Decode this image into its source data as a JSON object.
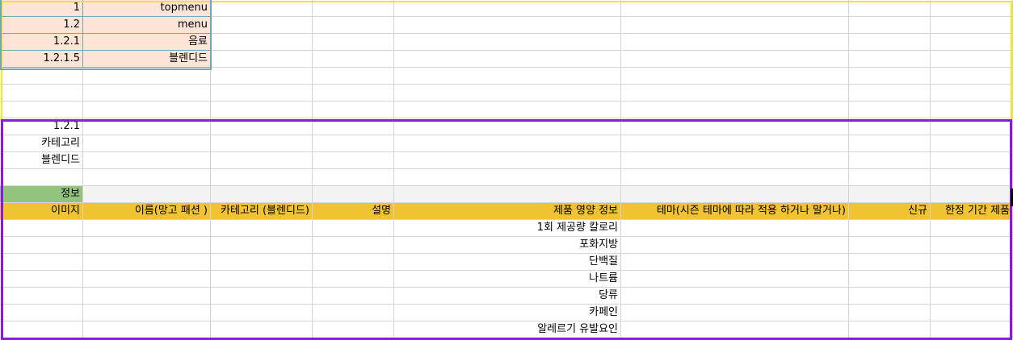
{
  "colors": {
    "peach": "#fce4d6",
    "green": "#93c47d",
    "header": "#f1c232",
    "yellow_border": "#f2e71b",
    "purple_border": "#8a19e0",
    "teal_border": "#76a5af"
  },
  "menu_rows": [
    {
      "code": "1",
      "name": "topmenu"
    },
    {
      "code": "1.2",
      "name": "menu"
    },
    {
      "code": "1.2.1",
      "name": "음료"
    },
    {
      "code": "1.2.1.5",
      "name": "블렌디드"
    }
  ],
  "category_block": {
    "code": "1.2.1",
    "label": "카테고리",
    "value": "블렌디드"
  },
  "info_label": "정보",
  "headers": [
    "이미지",
    "이름(망고 패션 )",
    "카테고리 (블렌디드)",
    "설명",
    "제품 영양 정보",
    "테마(시즌 테마에 따라 적용 하거나 말거나)",
    "신규",
    "한정 기간 제품"
  ],
  "nutrition": [
    "1회 제공량 칼로리",
    "포화지방",
    "단백질",
    "나트륨",
    "당류",
    "카페인",
    "알레르기 유발요인"
  ]
}
